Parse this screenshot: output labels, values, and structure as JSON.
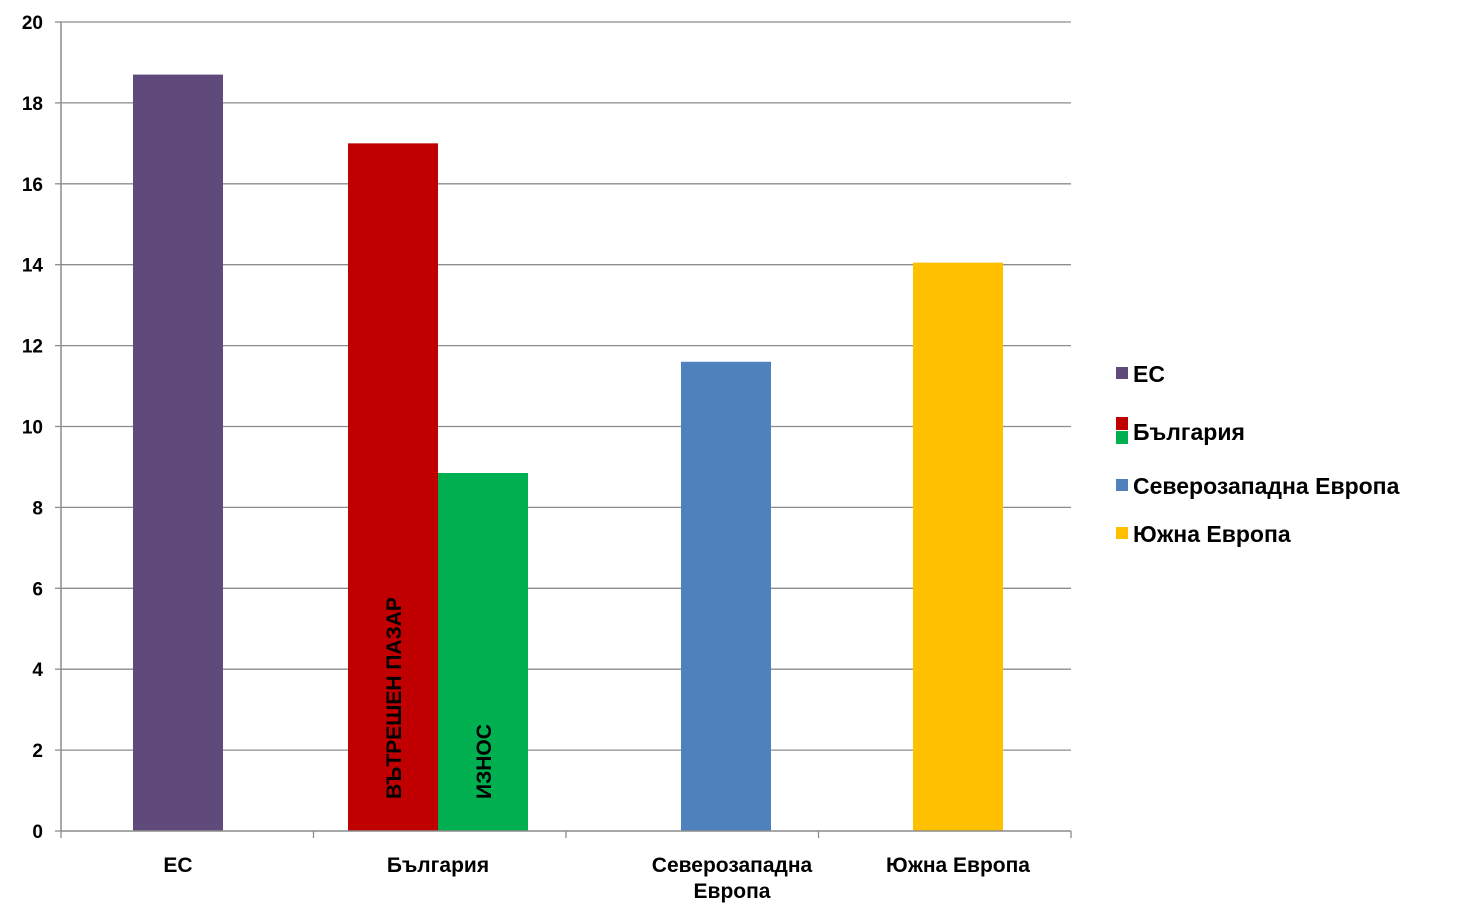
{
  "chart_data": {
    "type": "bar",
    "title": "",
    "xlabel": "",
    "ylabel": "",
    "ylim": [
      0,
      20
    ],
    "yticks": [
      0,
      2,
      4,
      6,
      8,
      10,
      12,
      14,
      16,
      18,
      20
    ],
    "grid": true,
    "legend_position": "right",
    "categories": [
      {
        "label": [
          "ЕС"
        ]
      },
      {
        "label": [
          "България"
        ]
      },
      {
        "label": [
          "Северозападна",
          "Европа"
        ]
      },
      {
        "label": [
          "Южна Европа"
        ]
      }
    ],
    "bars": [
      {
        "category": 0,
        "value": 18.7,
        "color": "#604A7B",
        "label": ""
      },
      {
        "category": 1,
        "value": 17.0,
        "color": "#C00000",
        "label": "ВЪТРЕШЕН ПАЗАР"
      },
      {
        "category": 1,
        "value": 8.85,
        "color": "#00B050",
        "label": "ИЗНОС"
      },
      {
        "category": 2,
        "value": 11.6,
        "color": "#4F81BD",
        "label": ""
      },
      {
        "category": 3,
        "value": 14.05,
        "color": "#FFC000",
        "label": ""
      }
    ],
    "legend": [
      {
        "name": "ЕС",
        "colors": [
          "#604A7B"
        ]
      },
      {
        "name": "България",
        "colors": [
          "#C00000",
          "#00B050"
        ]
      },
      {
        "name": "Северозападна Европа",
        "colors": [
          "#4F81BD"
        ]
      },
      {
        "name": "Южна Европа",
        "colors": [
          "#FFC000"
        ]
      }
    ]
  }
}
